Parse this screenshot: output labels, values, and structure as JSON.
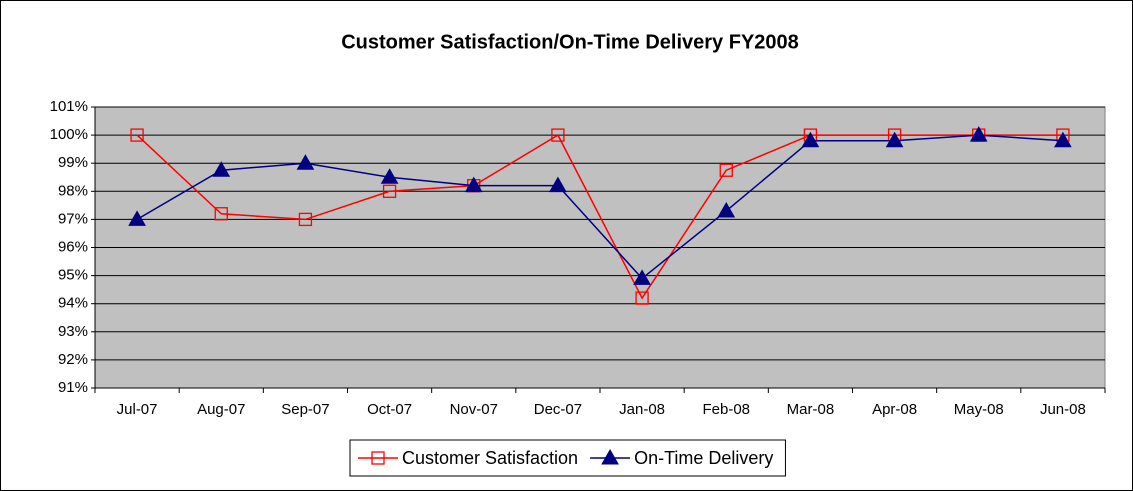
{
  "chart_data": {
    "type": "line",
    "title": "Customer Satisfaction/On-Time Delivery FY2008",
    "categories": [
      "Jul-07",
      "Aug-07",
      "Sep-07",
      "Oct-07",
      "Nov-07",
      "Dec-07",
      "Jan-08",
      "Feb-08",
      "Mar-08",
      "Apr-08",
      "May-08",
      "Jun-08"
    ],
    "series": [
      {
        "name": "Customer Satisfaction",
        "color": "#ff0000",
        "marker": "square",
        "values": [
          100,
          97.2,
          97.0,
          98.0,
          98.2,
          100,
          94.2,
          98.75,
          100,
          100,
          100,
          100
        ]
      },
      {
        "name": "On-Time Delivery",
        "color": "#000080",
        "marker": "triangle",
        "values": [
          97.0,
          98.75,
          99.0,
          98.5,
          98.2,
          98.2,
          94.9,
          97.3,
          99.8,
          99.8,
          100,
          99.8
        ]
      }
    ],
    "ylim": [
      91,
      101
    ],
    "yticks": [
      {
        "value": 91,
        "label": "91%"
      },
      {
        "value": 92,
        "label": "92%"
      },
      {
        "value": 93,
        "label": "93%"
      },
      {
        "value": 94,
        "label": "94%"
      },
      {
        "value": 95,
        "label": "95%"
      },
      {
        "value": 96,
        "label": "96%"
      },
      {
        "value": 97,
        "label": "97%"
      },
      {
        "value": 98,
        "label": "98%"
      },
      {
        "value": 99,
        "label": "99%"
      },
      {
        "value": 100,
        "label": "100%"
      },
      {
        "value": 101,
        "label": "101%"
      }
    ],
    "grid": true,
    "legend": "bottom"
  }
}
